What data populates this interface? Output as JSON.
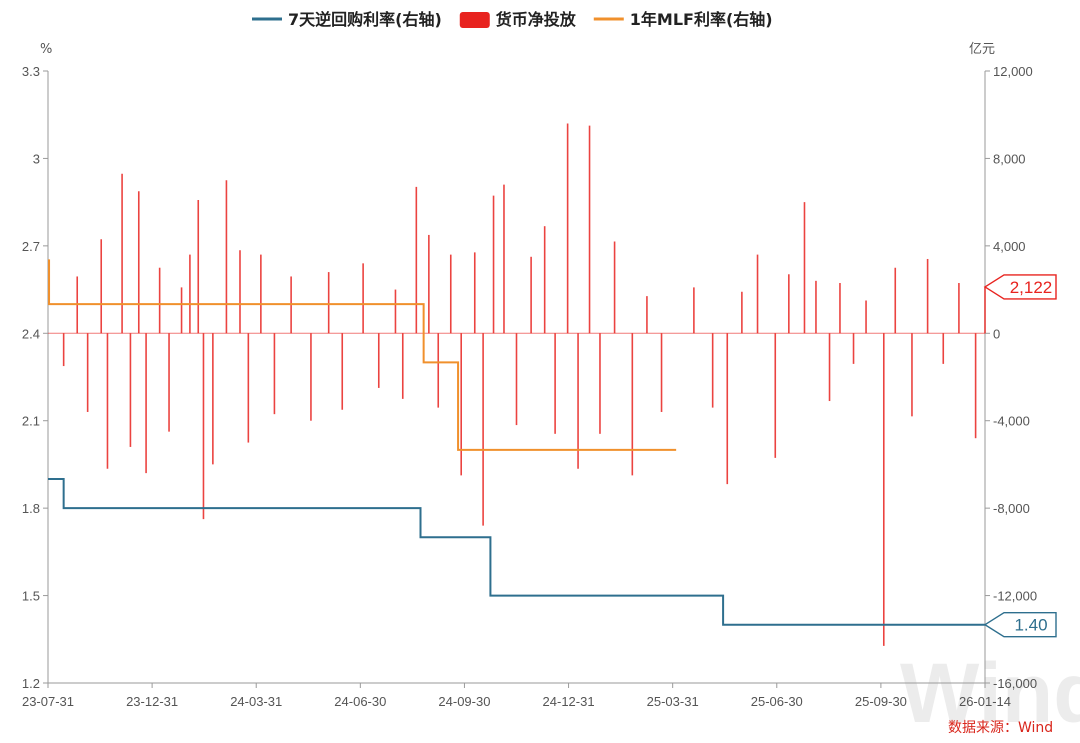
{
  "legend": [
    {
      "label": "7天逆回购利率(右轴)",
      "color": "#2e6f8e",
      "kind": "line"
    },
    {
      "label": "货币净投放",
      "color": "#e8231f",
      "kind": "box"
    },
    {
      "label": "1年MLF利率(右轴)",
      "color": "#f0902c",
      "kind": "line"
    }
  ],
  "left_axis": {
    "unit": "%",
    "ticks": [
      "3.3",
      "3",
      "2.7",
      "2.4",
      "2.1",
      "1.8",
      "1.5",
      "1.2"
    ]
  },
  "right_axis": {
    "unit": "亿元",
    "ticks": [
      "12,000",
      "8,000",
      "4,000",
      "0",
      "-4,000",
      "-8,000",
      "-12,000",
      "-16,000"
    ]
  },
  "x_ticks": [
    "23-07-31",
    "23-12-31",
    "24-03-31",
    "24-06-30",
    "24-09-30",
    "24-12-31",
    "25-03-31",
    "25-06-30",
    "25-09-30",
    "26-01-14"
  ],
  "callouts": {
    "net_injection_last": "2,122",
    "reverse_repo_last": "1.40"
  },
  "source": "数据来源：Wind",
  "watermark": "Wind",
  "chart_data": {
    "type": "bar+line",
    "x_range": [
      "2023-07-31",
      "2026-01-14"
    ],
    "left_axis_range": [
      1.2,
      3.3
    ],
    "right_axis_range": [
      -16000,
      12000
    ],
    "series": [
      {
        "name": "7天逆回购利率(右轴)",
        "type": "step-line",
        "color": "#2e6f8e",
        "points": [
          [
            "2023-07-31",
            1.9
          ],
          [
            "2023-08-15",
            1.8
          ],
          [
            "2024-07-22",
            1.7
          ],
          [
            "2024-09-27",
            1.5
          ],
          [
            "2025-05-08",
            1.4
          ],
          [
            "2026-01-14",
            1.4
          ]
        ]
      },
      {
        "name": "1年MLF利率(右轴)",
        "type": "step-line",
        "color": "#f0902c",
        "points": [
          [
            "2023-07-31",
            2.65
          ],
          [
            "2023-08-01",
            2.5
          ],
          [
            "2024-07-01",
            2.5
          ],
          [
            "2024-07-25",
            2.3
          ],
          [
            "2024-08-26",
            2.3
          ],
          [
            "2024-08-27",
            2.0
          ],
          [
            "2025-03-24",
            2.0
          ]
        ]
      },
      {
        "name": "货币净投放",
        "type": "bar",
        "color": "#e8231f",
        "unit": "亿元",
        "points": [
          [
            "2023-08-15",
            -1500
          ],
          [
            "2023-08-28",
            2600
          ],
          [
            "2023-09-07",
            -3600
          ],
          [
            "2023-09-20",
            4300
          ],
          [
            "2023-09-26",
            -6200
          ],
          [
            "2023-10-10",
            7300
          ],
          [
            "2023-10-18",
            -5200
          ],
          [
            "2023-10-26",
            6500
          ],
          [
            "2023-11-02",
            -6400
          ],
          [
            "2023-11-15",
            3000
          ],
          [
            "2023-11-24",
            -4500
          ],
          [
            "2023-12-06",
            2100
          ],
          [
            "2023-12-14",
            3600
          ],
          [
            "2023-12-22",
            6100
          ],
          [
            "2023-12-27",
            -8500
          ],
          [
            "2024-01-05",
            -6000
          ],
          [
            "2024-01-18",
            7000
          ],
          [
            "2024-01-31",
            3800
          ],
          [
            "2024-02-08",
            -5000
          ],
          [
            "2024-02-20",
            3600
          ],
          [
            "2024-03-04",
            -3700
          ],
          [
            "2024-03-20",
            2600
          ],
          [
            "2024-04-08",
            -4000
          ],
          [
            "2024-04-25",
            2800
          ],
          [
            "2024-05-08",
            -3500
          ],
          [
            "2024-05-28",
            3200
          ],
          [
            "2024-06-12",
            -2500
          ],
          [
            "2024-06-28",
            2000
          ],
          [
            "2024-07-05",
            -3000
          ],
          [
            "2024-07-18",
            6700
          ],
          [
            "2024-07-30",
            4500
          ],
          [
            "2024-08-08",
            -3400
          ],
          [
            "2024-08-20",
            3600
          ],
          [
            "2024-08-30",
            -6500
          ],
          [
            "2024-09-12",
            3700
          ],
          [
            "2024-09-20",
            -8800
          ],
          [
            "2024-09-30",
            6300
          ],
          [
            "2024-10-10",
            6800
          ],
          [
            "2024-10-22",
            -4200
          ],
          [
            "2024-11-05",
            3500
          ],
          [
            "2024-11-18",
            4900
          ],
          [
            "2024-11-28",
            -4600
          ],
          [
            "2024-12-10",
            9600
          ],
          [
            "2024-12-20",
            -6200
          ],
          [
            "2024-12-31",
            9500
          ],
          [
            "2025-01-10",
            -4600
          ],
          [
            "2025-01-24",
            4200
          ],
          [
            "2025-02-10",
            -6500
          ],
          [
            "2025-02-24",
            1700
          ],
          [
            "2025-03-10",
            -3600
          ],
          [
            "2025-04-10",
            2100
          ],
          [
            "2025-04-28",
            -3400
          ],
          [
            "2025-05-12",
            -6900
          ],
          [
            "2025-05-26",
            1900
          ],
          [
            "2025-06-10",
            3600
          ],
          [
            "2025-06-27",
            -5700
          ],
          [
            "2025-07-10",
            2700
          ],
          [
            "2025-07-25",
            6000
          ],
          [
            "2025-08-05",
            2400
          ],
          [
            "2025-08-18",
            -3100
          ],
          [
            "2025-08-28",
            2300
          ],
          [
            "2025-09-10",
            -1400
          ],
          [
            "2025-09-22",
            1500
          ],
          [
            "2025-10-09",
            -14300
          ],
          [
            "2025-10-20",
            3000
          ],
          [
            "2025-11-05",
            -3800
          ],
          [
            "2025-11-20",
            3400
          ],
          [
            "2025-12-05",
            -1400
          ],
          [
            "2025-12-20",
            2300
          ],
          [
            "2026-01-05",
            -4800
          ],
          [
            "2026-01-14",
            2122
          ]
        ]
      }
    ]
  }
}
